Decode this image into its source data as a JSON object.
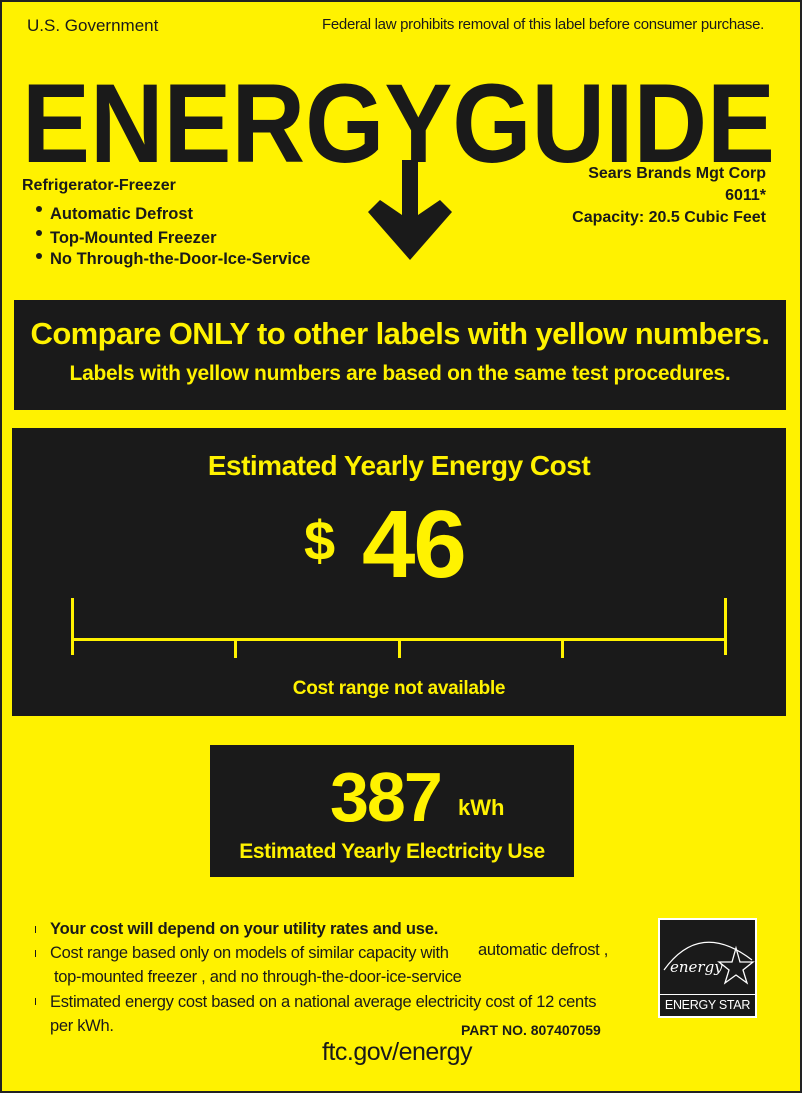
{
  "header": {
    "left": "U.S. Government",
    "right": "Federal law prohibits removal of this label before consumer purchase."
  },
  "logo": {
    "text": "ENERGYGUIDE"
  },
  "product": {
    "type": "Refrigerator-Freezer",
    "features": [
      "Automatic Defrost",
      "Top-Mounted Freezer",
      "No Through-the-Door-Ice-Service"
    ]
  },
  "manufacturer": {
    "name": "Sears Brands Mgt Corp",
    "model": "6011*",
    "capacity": "Capacity: 20.5 Cubic Feet"
  },
  "compare": {
    "headline": "Compare ONLY to other labels with yellow numbers.",
    "subline": "Labels with yellow numbers are based on the same test procedures."
  },
  "cost": {
    "title": "Estimated Yearly Energy Cost",
    "currency": "$",
    "value": "46",
    "range_note": "Cost range not available"
  },
  "usage": {
    "value": "387",
    "unit": "kWh",
    "label": "Estimated Yearly Electricity Use"
  },
  "notes": {
    "line1": "Your cost will depend on your utility rates and use.",
    "line2a": "Cost range based only on models of similar capacity with",
    "line2b": "automatic defrost ,",
    "line2c": "top-mounted freezer , and  no through-the-door-ice-service",
    "line3a": "Estimated energy cost based on a national average electricity cost of 12 cents",
    "line3b": "per kWh."
  },
  "part_no": "PART NO. 807407059",
  "website": "ftc.gov/energy",
  "energy_star": {
    "script": "energy",
    "label": "ENERGY STAR"
  },
  "colors": {
    "yellow": "#fff200",
    "black": "#1a1a1a"
  }
}
